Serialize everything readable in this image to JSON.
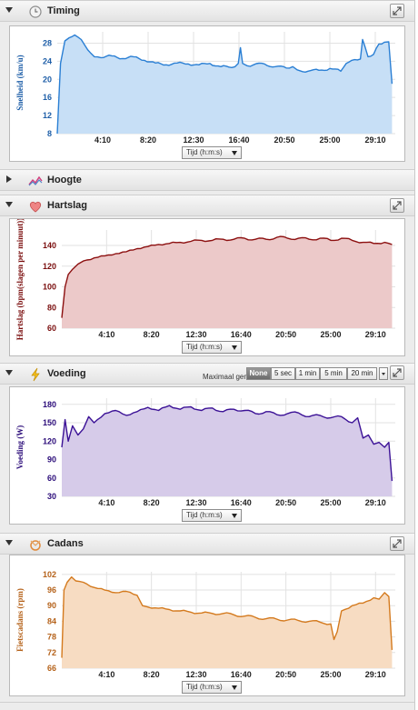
{
  "panels": {
    "timing": {
      "title": "Timing",
      "icon": "clock-icon"
    },
    "hoogte": {
      "title": "Hoogte",
      "icon": "elevation-icon"
    },
    "hartslag": {
      "title": "Hartslag",
      "icon": "heart-icon"
    },
    "voeding": {
      "title": "Voeding",
      "icon": "lightning-icon"
    },
    "cadans": {
      "title": "Cadans",
      "icon": "cadence-icon"
    }
  },
  "axis_select": {
    "value": "Tijd (h:m:s)"
  },
  "smoothing": {
    "label": "Maximaal gemiddeld:",
    "options": [
      "None",
      "5 sec",
      "1 min",
      "5 min",
      "20 min"
    ],
    "selected": "None"
  },
  "colors": {
    "speed_line": "#2a7fd4",
    "speed_fill": "#c7dff6",
    "hr_line": "#8c1010",
    "hr_fill": "#ecc9c9",
    "power_line": "#3b1196",
    "power_fill": "#d6cbe9",
    "cadence_line": "#d47a1e",
    "cadence_fill": "#f7dcc2"
  },
  "chart_data": [
    {
      "type": "area",
      "panel": "timing",
      "ylabel": "Snelheid (km/u)",
      "xlabel": "Tijd (h:m:s)",
      "x_tick_labels": [
        "4:10",
        "8:20",
        "12:30",
        "16:40",
        "20:50",
        "25:00",
        "29:10"
      ],
      "x_tick_minutes": [
        4.1667,
        8.3333,
        12.5,
        16.6667,
        20.8333,
        25,
        29.1667
      ],
      "y_ticks": [
        8,
        12,
        16,
        20,
        24,
        28
      ],
      "ylim": [
        8,
        30.5
      ],
      "xlim": [
        0,
        31
      ],
      "series": [
        {
          "x": [
            0,
            0.3,
            0.7,
            1.1,
            1.6,
            2.2,
            2.8,
            3.4,
            4,
            5,
            6,
            7,
            8,
            9,
            10,
            11,
            12,
            13,
            14,
            15,
            16,
            16.6,
            16.8,
            17,
            17.4,
            18,
            19,
            20,
            21,
            21.6,
            22,
            23,
            24,
            25,
            26,
            26.5,
            27,
            27.8,
            28,
            28.5,
            29,
            29.5,
            30,
            30.4,
            30.7
          ],
          "y": [
            8,
            23.5,
            28.5,
            29.2,
            29.8,
            28.8,
            26.5,
            25,
            24.8,
            25.2,
            24.6,
            25,
            24.2,
            23.6,
            23.2,
            23.6,
            23.4,
            23.2,
            23.5,
            22.8,
            22.6,
            23.5,
            27,
            23.5,
            23,
            23.2,
            23.4,
            22.8,
            22.5,
            22.8,
            22.1,
            21.8,
            22,
            22.4,
            21.8,
            23.5,
            24.2,
            24.5,
            28.8,
            25,
            25.5,
            27.8,
            28.2,
            28.3,
            19
          ]
        }
      ]
    },
    {
      "type": "area",
      "panel": "hartslag",
      "ylabel": "Hartslag (bpm(slagen per minuut))",
      "xlabel": "Tijd (h:m:s)",
      "x_tick_labels": [
        "4:10",
        "8:20",
        "12:30",
        "16:40",
        "20:50",
        "25:00",
        "29:10"
      ],
      "x_tick_minutes": [
        4.1667,
        8.3333,
        12.5,
        16.6667,
        20.8333,
        25,
        29.1667
      ],
      "y_ticks": [
        60,
        80,
        100,
        120,
        140
      ],
      "ylim": [
        60,
        155
      ],
      "xlim": [
        0,
        31
      ],
      "series": [
        {
          "x": [
            0,
            0.3,
            0.6,
            1,
            1.5,
            2,
            3,
            4,
            5,
            6,
            7,
            8,
            9,
            10,
            11,
            12,
            13,
            14,
            15,
            16,
            17,
            18,
            19,
            20,
            21,
            22,
            23,
            24,
            25,
            26,
            27,
            28,
            29,
            30,
            30.7
          ],
          "y": [
            70,
            100,
            112,
            117,
            122,
            125,
            128,
            130,
            132,
            134,
            137,
            139,
            141,
            142,
            143,
            144,
            145,
            145,
            146,
            146,
            147,
            146,
            146,
            148,
            147,
            147,
            146,
            147,
            145,
            147,
            145,
            143,
            142,
            143,
            141
          ]
        }
      ]
    },
    {
      "type": "area",
      "panel": "voeding",
      "ylabel": "Voeding (W)",
      "xlabel": "Tijd (h:m:s)",
      "x_tick_labels": [
        "4:10",
        "8:20",
        "12:30",
        "16:40",
        "20:50",
        "25:00",
        "29:10"
      ],
      "x_tick_minutes": [
        4.1667,
        8.3333,
        12.5,
        16.6667,
        20.8333,
        25,
        29.1667
      ],
      "y_ticks": [
        30,
        60,
        90,
        120,
        150,
        180
      ],
      "ylim": [
        30,
        190
      ],
      "xlim": [
        0,
        31
      ],
      "series": [
        {
          "x": [
            0,
            0.3,
            0.6,
            1,
            1.5,
            2,
            2.5,
            3,
            4,
            5,
            6,
            7,
            8,
            9,
            10,
            11,
            12,
            13,
            14,
            15,
            16,
            17,
            18,
            19,
            20,
            21,
            22,
            23,
            24,
            25,
            26,
            27,
            27.5,
            28,
            28.5,
            29,
            29.5,
            30,
            30.4,
            30.7
          ],
          "y": [
            110,
            155,
            120,
            145,
            130,
            140,
            160,
            150,
            165,
            170,
            162,
            168,
            175,
            170,
            178,
            172,
            176,
            170,
            174,
            168,
            172,
            170,
            165,
            168,
            163,
            165,
            166,
            160,
            162,
            158,
            160,
            150,
            158,
            125,
            130,
            115,
            118,
            110,
            118,
            55
          ]
        }
      ]
    },
    {
      "type": "area",
      "panel": "cadans",
      "ylabel": "Fietscadans (rpm)",
      "xlabel": "Tijd (h:m:s)",
      "x_tick_labels": [
        "4:10",
        "8:20",
        "12:30",
        "16:40",
        "20:50",
        "25:00",
        "29:10"
      ],
      "x_tick_minutes": [
        4.1667,
        8.3333,
        12.5,
        16.6667,
        20.8333,
        25,
        29.1667
      ],
      "y_ticks": [
        66,
        72,
        78,
        84,
        90,
        96,
        102
      ],
      "ylim": [
        66,
        103
      ],
      "xlim": [
        0,
        31
      ],
      "series": [
        {
          "x": [
            0,
            0.2,
            0.5,
            0.9,
            1.3,
            2,
            3,
            4,
            5,
            6,
            7,
            7.5,
            8,
            9,
            10,
            11,
            12,
            13,
            14,
            15,
            16,
            17,
            18,
            19,
            20,
            21,
            22,
            23,
            24,
            25,
            25.3,
            25.6,
            26,
            27,
            28,
            29,
            29.5,
            30,
            30.4,
            30.7
          ],
          "y": [
            70,
            96,
            99,
            101,
            99.5,
            99,
            97,
            96,
            95,
            95.5,
            94,
            90,
            89.5,
            89,
            88.5,
            88,
            87.5,
            87.2,
            87,
            87,
            86.5,
            86,
            85.5,
            85,
            84.8,
            84.5,
            84.3,
            84,
            83.7,
            83,
            77,
            80,
            88,
            90,
            91,
            93,
            92.5,
            95,
            93.5,
            73
          ]
        }
      ]
    }
  ]
}
